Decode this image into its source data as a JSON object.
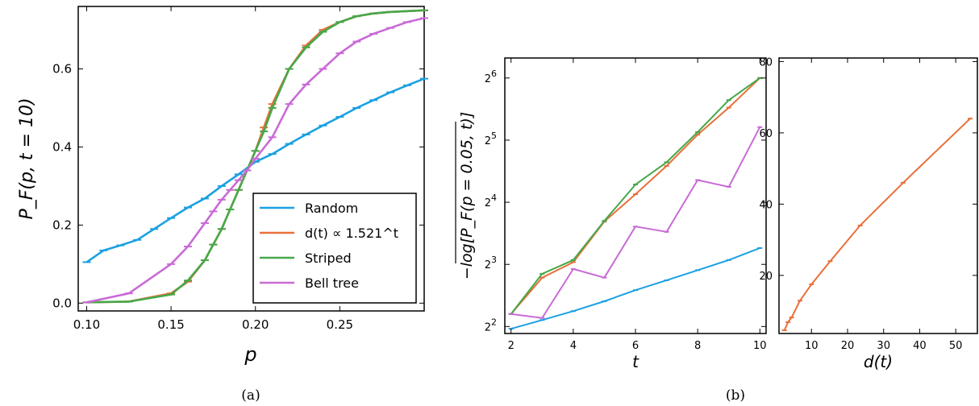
{
  "chart_data": [
    {
      "type": "line",
      "panel": "a",
      "caption": "(a)",
      "xlabel": "p",
      "ylabel": "P_F(p, t = 10)",
      "xlim": [
        0.095,
        0.3
      ],
      "ylim": [
        -0.02,
        0.76
      ],
      "x_ticks": [
        "0.10",
        "0.15",
        "0.20",
        "0.25"
      ],
      "y_ticks": [
        "0.0",
        "0.2",
        "0.4",
        "0.6"
      ],
      "legend_position": "lower-right",
      "series": [
        {
          "name": "Random",
          "color": "#1ba1e2",
          "x": [
            0.1,
            0.11,
            0.12,
            0.13,
            0.14,
            0.15,
            0.16,
            0.17,
            0.18,
            0.19,
            0.2,
            0.21,
            0.22,
            0.23,
            0.24,
            0.25,
            0.26,
            0.27,
            0.28,
            0.29,
            0.3
          ],
          "y": [
            0.105,
            0.135,
            0.148,
            0.162,
            0.19,
            0.218,
            0.245,
            0.268,
            0.3,
            0.33,
            0.362,
            0.382,
            0.408,
            0.432,
            0.455,
            0.477,
            0.5,
            0.52,
            0.54,
            0.558,
            0.575
          ]
        },
        {
          "name": "d(t) ∝ 1.521^t",
          "color": "#e8703a",
          "x": [
            0.1,
            0.125,
            0.15,
            0.16,
            0.17,
            0.175,
            0.18,
            0.185,
            0.19,
            0.195,
            0.2,
            0.205,
            0.21,
            0.22,
            0.23,
            0.24,
            0.25,
            0.26,
            0.27,
            0.28,
            0.29,
            0.3
          ],
          "y": [
            0.002,
            0.004,
            0.025,
            0.055,
            0.11,
            0.15,
            0.19,
            0.24,
            0.29,
            0.34,
            0.39,
            0.45,
            0.51,
            0.6,
            0.66,
            0.7,
            0.72,
            0.735,
            0.742,
            0.746,
            0.748,
            0.75
          ]
        },
        {
          "name": "Striped",
          "color": "#46a84a",
          "x": [
            0.1,
            0.125,
            0.15,
            0.16,
            0.17,
            0.175,
            0.18,
            0.185,
            0.19,
            0.195,
            0.2,
            0.205,
            0.21,
            0.22,
            0.23,
            0.24,
            0.25,
            0.26,
            0.27,
            0.28,
            0.29,
            0.3
          ],
          "y": [
            0.002,
            0.004,
            0.022,
            0.058,
            0.11,
            0.15,
            0.19,
            0.24,
            0.29,
            0.34,
            0.39,
            0.44,
            0.5,
            0.6,
            0.655,
            0.695,
            0.72,
            0.735,
            0.742,
            0.746,
            0.748,
            0.75
          ]
        },
        {
          "name": "Bell tree",
          "color": "#c96bd6",
          "x": [
            0.1,
            0.125,
            0.15,
            0.16,
            0.17,
            0.175,
            0.18,
            0.185,
            0.19,
            0.195,
            0.2,
            0.21,
            0.22,
            0.23,
            0.24,
            0.25,
            0.26,
            0.27,
            0.28,
            0.29,
            0.3
          ],
          "y": [
            0.002,
            0.025,
            0.1,
            0.145,
            0.205,
            0.235,
            0.265,
            0.29,
            0.315,
            0.34,
            0.37,
            0.425,
            0.51,
            0.56,
            0.6,
            0.64,
            0.67,
            0.69,
            0.705,
            0.72,
            0.73
          ]
        }
      ]
    },
    {
      "type": "line",
      "panel": "b-left",
      "caption": "(b)",
      "xlabel": "t",
      "ylabel": "−log[P_F(p = 0.05, t)]",
      "y_scale": "log2",
      "xlim": [
        1.8,
        10.2
      ],
      "ylim": [
        3.7,
        80
      ],
      "x_ticks": [
        "2",
        "4",
        "6",
        "8",
        "10"
      ],
      "y_ticks": [
        "2^2",
        "2^3",
        "2^4",
        "2^5",
        "2^6"
      ],
      "series": [
        {
          "name": "Random",
          "color": "#1ba1e2",
          "x": [
            2,
            3,
            4,
            5,
            6,
            7,
            8,
            9,
            10
          ],
          "y": [
            3.9,
            4.3,
            4.75,
            5.3,
            6.0,
            6.7,
            7.5,
            8.4,
            9.6
          ]
        },
        {
          "name": "d(t) ∝ 1.521^t",
          "color": "#e8703a",
          "x": [
            2,
            3,
            4,
            5,
            6,
            7,
            8,
            9,
            10
          ],
          "y": [
            4.6,
            6.9,
            8.2,
            12.9,
            17.5,
            24.0,
            34.0,
            46.0,
            64.0
          ]
        },
        {
          "name": "Striped",
          "color": "#46a84a",
          "x": [
            2,
            3,
            4,
            5,
            6,
            7,
            8,
            9,
            10
          ],
          "y": [
            4.6,
            7.2,
            8.4,
            13.0,
            19.5,
            25.0,
            35.0,
            50.0,
            64.0
          ]
        },
        {
          "name": "Bell tree",
          "color": "#c96bd6",
          "x": [
            2,
            3,
            4,
            5,
            6,
            7,
            8,
            9,
            10
          ],
          "y": [
            4.6,
            4.4,
            7.6,
            6.9,
            12.2,
            11.5,
            20.5,
            19.0,
            37.0
          ]
        }
      ]
    },
    {
      "type": "line",
      "panel": "b-right",
      "xlabel": "d(t)",
      "ylabel": "",
      "xlim": [
        1,
        56
      ],
      "ylim": [
        3.7,
        81
      ],
      "x_ticks": [
        "10",
        "20",
        "30",
        "40",
        "50"
      ],
      "y_ticks": [
        "20",
        "40",
        "60",
        "80"
      ],
      "series": [
        {
          "name": "d(t) ∝ 1.521^t",
          "color": "#e8703a",
          "x": [
            2.5,
            3.5,
            4.5,
            6.8,
            10.0,
            15.2,
            23.5,
            35.4,
            54.0
          ],
          "y": [
            4.6,
            6.9,
            8.2,
            12.9,
            17.5,
            24.0,
            34.0,
            46.0,
            64.0
          ]
        }
      ]
    }
  ]
}
